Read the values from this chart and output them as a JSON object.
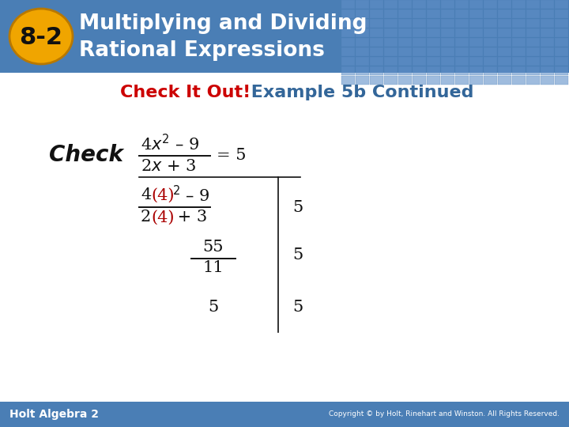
{
  "title_box_color": "#4a7eb5",
  "title_text1": "Multiplying and Dividing",
  "title_text2": "Rational Expressions",
  "badge_color": "#f0a500",
  "badge_text": "8-2",
  "subtitle_red": "Check It Out!",
  "subtitle_black": " Example 5b Continued",
  "subtitle_red_color": "#cc0000",
  "subtitle_black_color": "#336699",
  "check_label": "Check",
  "body_bg": "#ffffff",
  "footer_bg": "#4a7eb5",
  "footer_text": "Holt Algebra 2",
  "copyright_text": "Copyright © by Holt, Rinehart and Winston. All Rights Reserved.",
  "header_pattern_color": "#6090c8",
  "red_color": "#aa0000",
  "black_color": "#111111"
}
